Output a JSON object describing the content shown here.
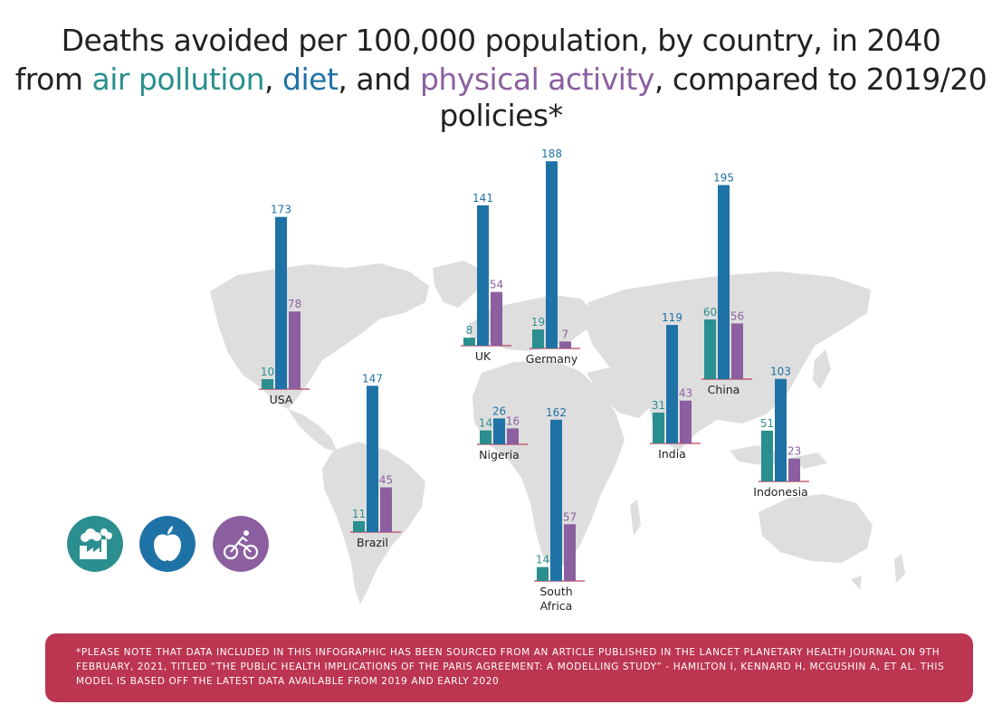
{
  "title": {
    "line1": "Deaths avoided per 100,000 population, by country, in 2040",
    "line2_from": "from ",
    "line2_air": "air pollution",
    "line2_sep1": ", ",
    "line2_diet": "diet",
    "line2_sep2": ", and ",
    "line2_activity": "physical activity",
    "line2_rest": ", compared to 2019/20 policies*"
  },
  "colors": {
    "air": "#2a8f8e",
    "diet": "#1f72a6",
    "activity": "#8b5fa0",
    "map": "#dedede",
    "footnote_bg": "#bc3551"
  },
  "legend_icons": [
    "factory-smoke-icon",
    "apple-icon",
    "cyclist-icon"
  ],
  "footnote": "*PLEASE NOTE THAT DATA INCLUDED IN THIS INFOGRAPHIC HAS BEEN SOURCED FROM AN ARTICLE PUBLISHED IN THE LANCET PLANETARY HEALTH JOURNAL ON 9TH FEBRUARY, 2021, TITLED “THE PUBLIC HEALTH IMPLICATIONS OF THE PARIS AGREEMENT: A MODELLING STUDY” - HAMILTON I, KENNARD H, MCGUSHIN A, ET AL. THIS MODEL IS BASED OFF THE LATEST DATA AVAILABLE FROM 2019 AND EARLY 2020",
  "chart_data": {
    "type": "bar",
    "categories": [
      "USA",
      "Brazil",
      "UK",
      "Germany",
      "Nigeria",
      "South Africa",
      "India",
      "China",
      "Indonesia"
    ],
    "series": [
      {
        "name": "air pollution",
        "values": [
          10,
          11,
          8,
          19,
          14,
          14,
          31,
          60,
          51
        ]
      },
      {
        "name": "diet",
        "values": [
          173,
          147,
          141,
          188,
          26,
          162,
          119,
          195,
          103
        ]
      },
      {
        "name": "physical activity",
        "values": [
          78,
          45,
          54,
          7,
          16,
          57,
          43,
          56,
          23
        ]
      }
    ]
  }
}
